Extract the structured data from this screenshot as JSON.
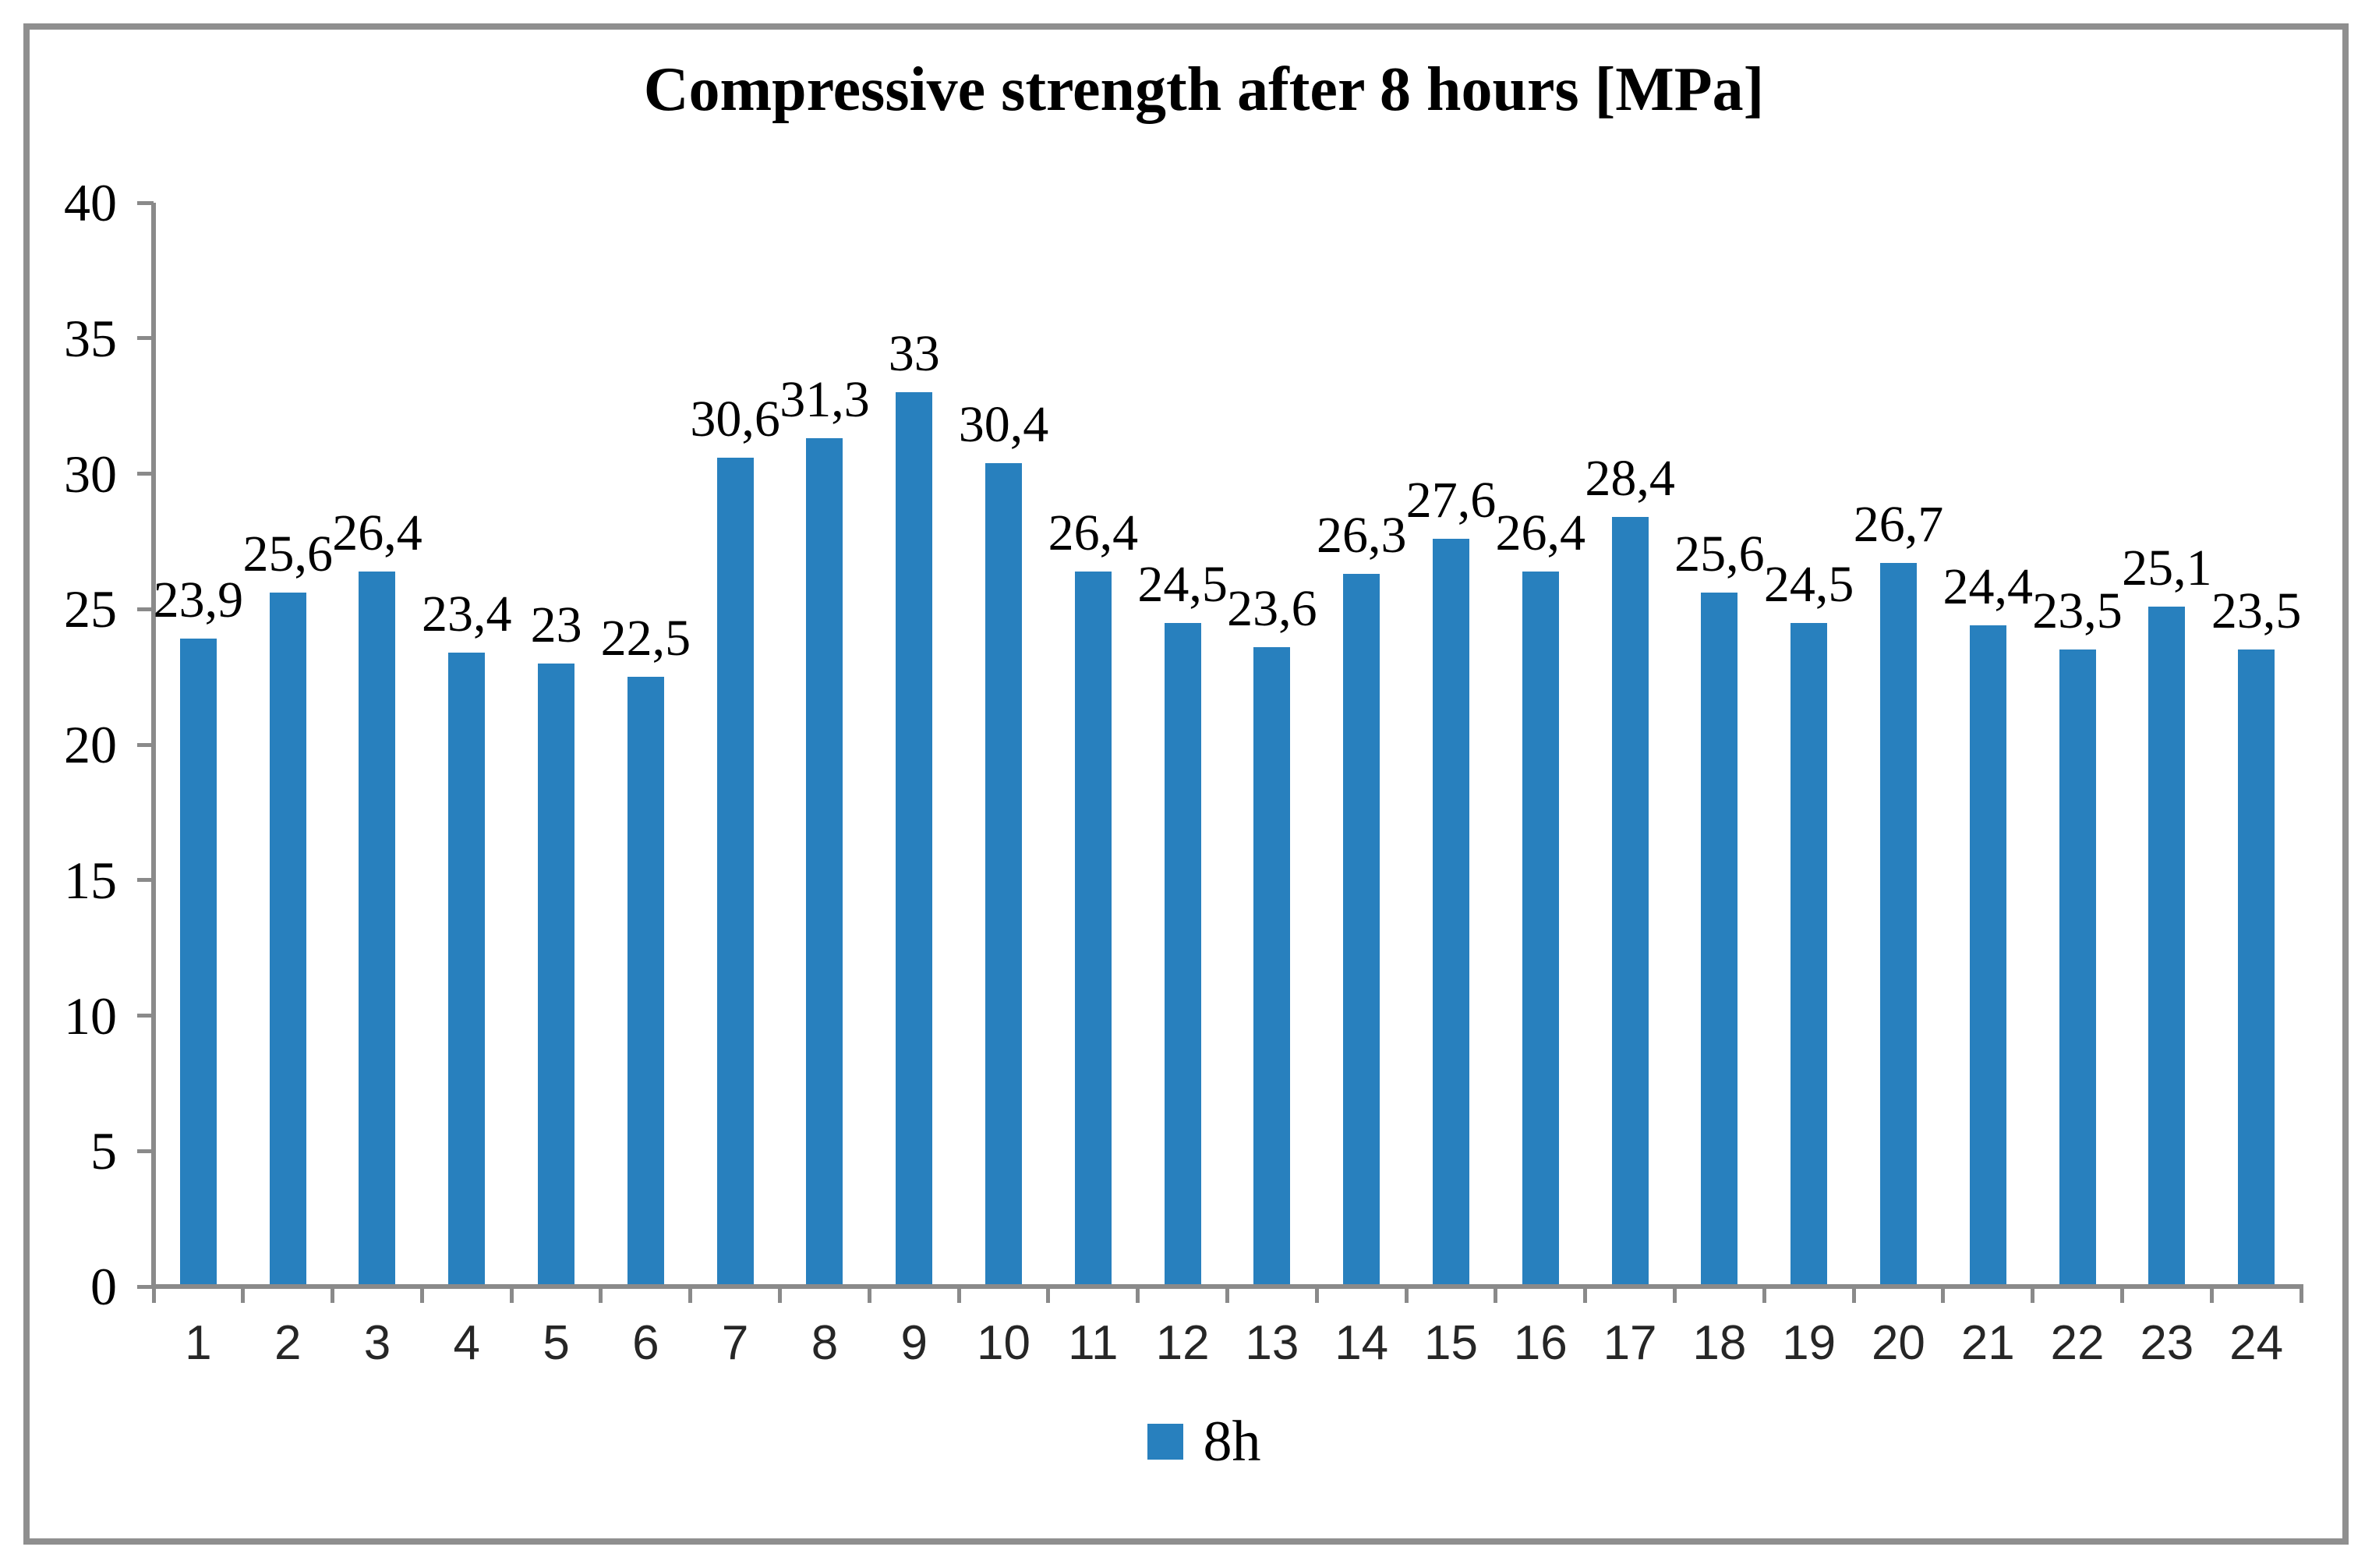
{
  "chart_data": {
    "type": "bar",
    "title": "Compressive strength after 8 hours [MPa]",
    "categories": [
      "1",
      "2",
      "3",
      "4",
      "5",
      "6",
      "7",
      "8",
      "9",
      "10",
      "11",
      "12",
      "13",
      "14",
      "15",
      "16",
      "17",
      "18",
      "19",
      "20",
      "21",
      "22",
      "23",
      "24"
    ],
    "series": [
      {
        "name": "8h",
        "values": [
          23.9,
          25.6,
          26.4,
          23.4,
          23,
          22.5,
          30.6,
          31.3,
          33,
          30.4,
          26.4,
          24.5,
          23.6,
          26.3,
          27.6,
          26.4,
          28.4,
          25.6,
          24.5,
          26.7,
          24.4,
          23.5,
          25.1,
          23.5
        ]
      }
    ],
    "value_labels": [
      "23,9",
      "25,6",
      "26,4",
      "23,4",
      "23",
      "22,5",
      "30,6",
      "31,3",
      "33",
      "30,4",
      "26,4",
      "24,5",
      "23,6",
      "26,3",
      "27,6",
      "26,4",
      "28,4",
      "25,6",
      "24,5",
      "26,7",
      "24,4",
      "23,5",
      "25,1",
      "23,5"
    ],
    "ylim": [
      0,
      40
    ],
    "ytick_step": 5,
    "ytick_labels": [
      "0",
      "5",
      "10",
      "15",
      "20",
      "25",
      "30",
      "35",
      "40"
    ],
    "xlabel": "",
    "ylabel": "",
    "grid": false,
    "legend_position": "bottom",
    "legend_label": "8h",
    "bar_color": "#2880BE",
    "axis_color": "#8A8A8A",
    "decimal_separator": ","
  }
}
